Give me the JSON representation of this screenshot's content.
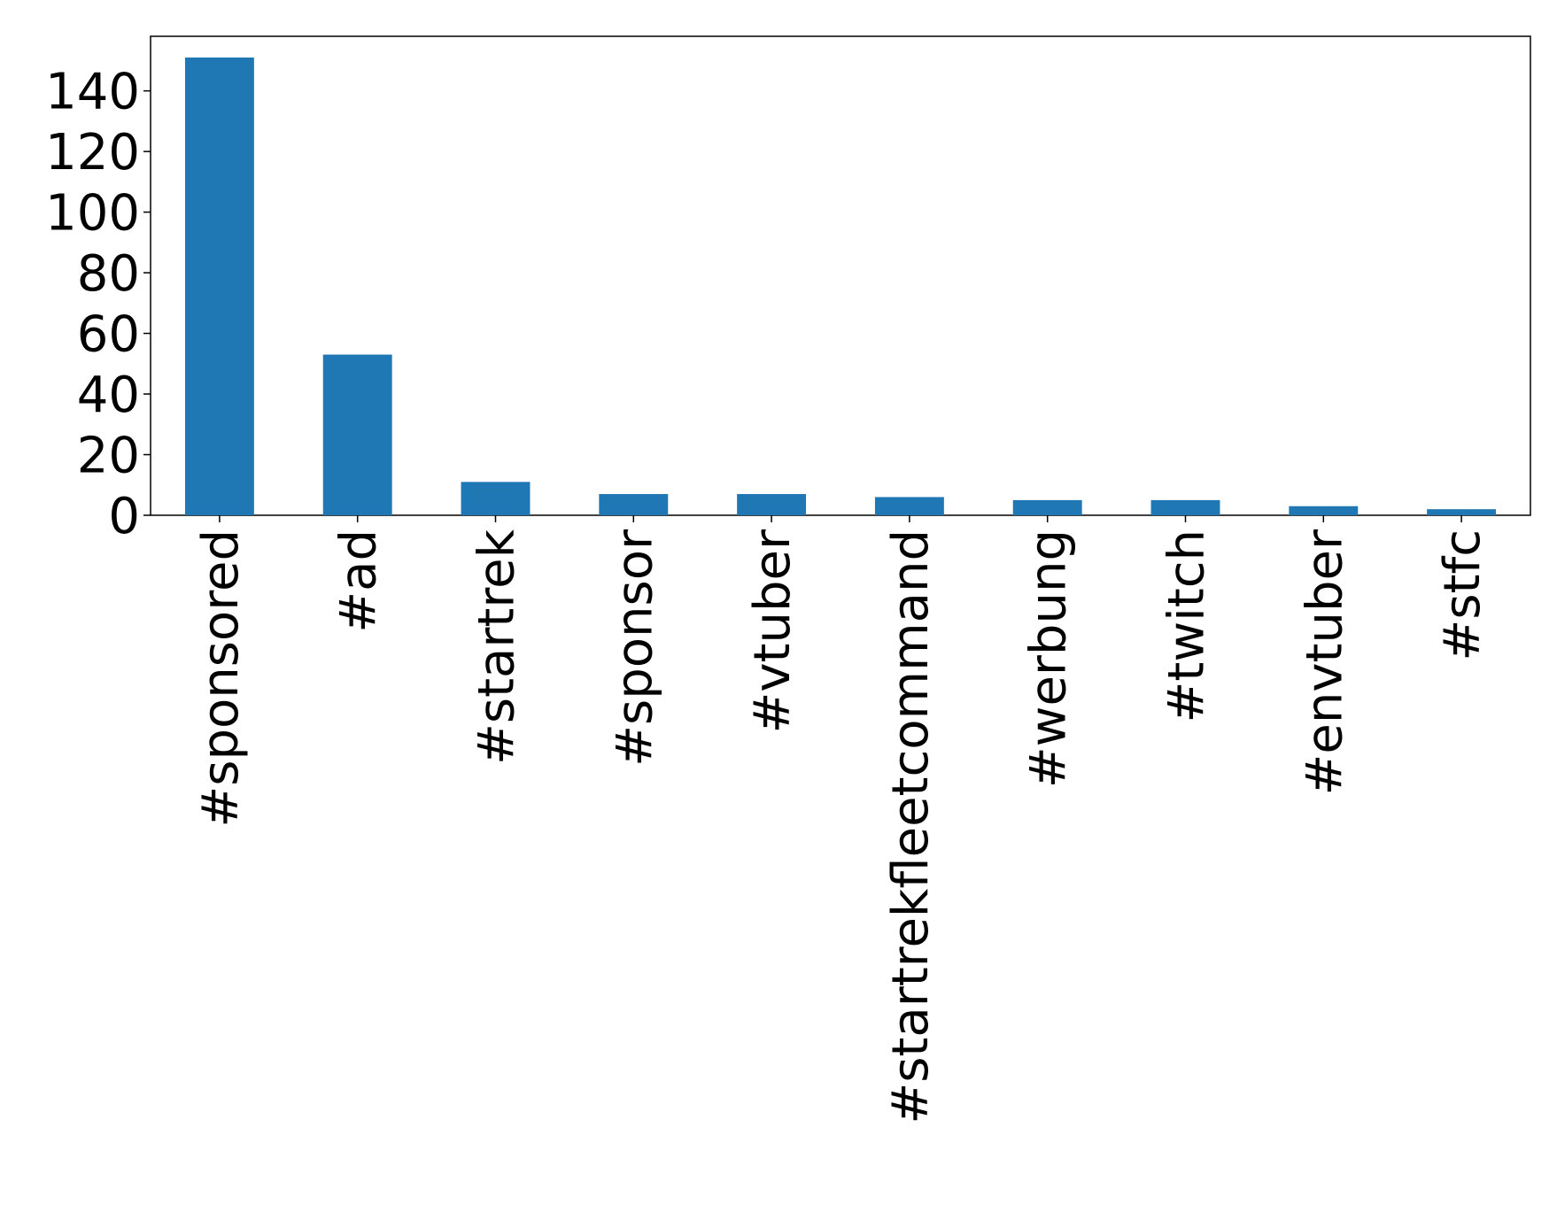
{
  "chart_data": {
    "type": "bar",
    "categories": [
      "#sponsored",
      "#ad",
      "#startrek",
      "#sponsor",
      "#vtuber",
      "#startrekfleetcommand",
      "#werbung",
      "#twitch",
      "#envtuber",
      "#stfc"
    ],
    "values": [
      151,
      53,
      11,
      7,
      7,
      6,
      5,
      5,
      3,
      2
    ],
    "color": "#1f77b4",
    "ylim": [
      0,
      158
    ],
    "yticks": [
      0,
      20,
      40,
      60,
      80,
      100,
      120,
      140
    ],
    "grid": false
  }
}
